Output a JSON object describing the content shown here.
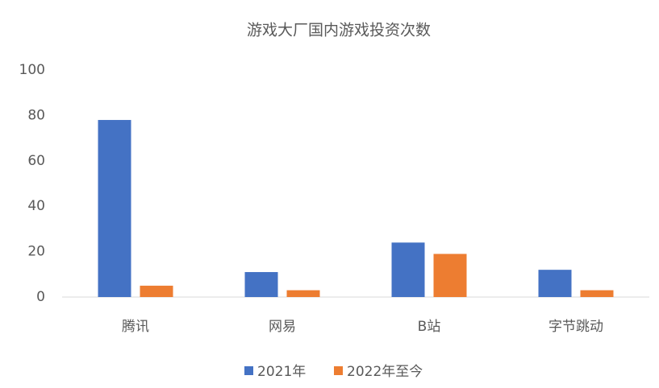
{
  "chart_data": {
    "type": "bar",
    "title": "游戏大厂国内游戏投资次数",
    "categories": [
      "腾讯",
      "网易",
      "B站",
      "字节跳动"
    ],
    "series": [
      {
        "name": "2021年",
        "color": "#4472c4",
        "values": [
          78,
          11,
          24,
          12
        ]
      },
      {
        "name": "2022年至今",
        "color": "#ed7d31",
        "values": [
          5,
          3,
          19,
          3
        ]
      }
    ],
    "ylim": [
      0,
      100
    ],
    "yticks": [
      0,
      20,
      40,
      60,
      80,
      100
    ],
    "grid": false,
    "legend": "bottom"
  }
}
